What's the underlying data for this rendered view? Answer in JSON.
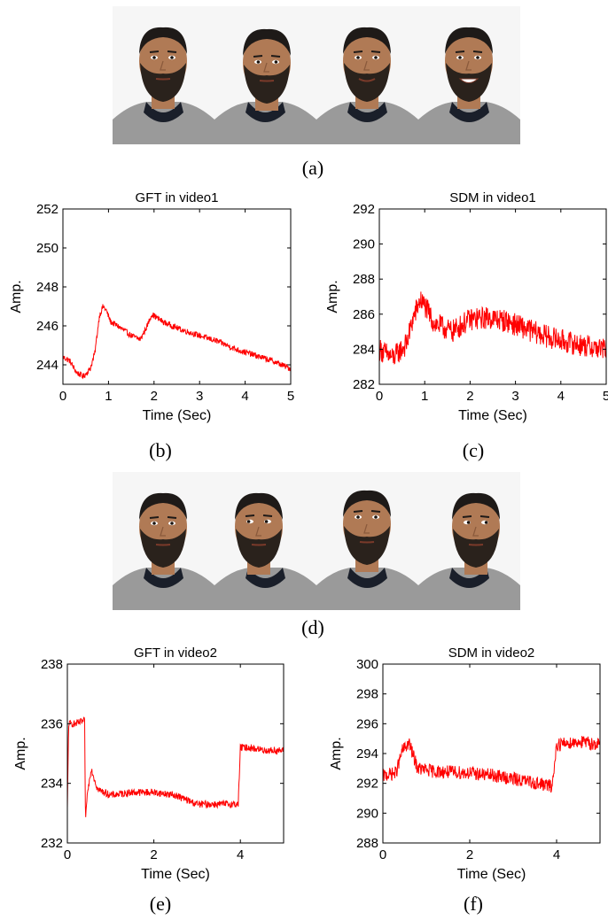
{
  "captions": {
    "a": "(a)",
    "b": "(b)",
    "c": "(c)",
    "d": "(d)",
    "e": "(e)",
    "f": "(f)"
  },
  "photos": {
    "row1": [
      "face-frontal-neutral",
      "face-looking-down",
      "face-slight-smile",
      "face-broad-smile"
    ],
    "row2": [
      "face-frontal",
      "face-turn-left",
      "face-looking-up",
      "face-turn-right"
    ]
  },
  "colors": {
    "signal": "#ff0000",
    "axis": "#000000",
    "skin": "#b07a55",
    "beard": "#2a221c",
    "hoodie": "#9a9a9a",
    "collar": "#1a1f2a"
  },
  "chart_data": [
    {
      "id": "b",
      "type": "line",
      "title": "GFT in video1",
      "xlabel": "Time (Sec)",
      "ylabel": "Amp.",
      "xlim": [
        0,
        5
      ],
      "ylim": [
        243,
        252
      ],
      "xticks": [
        "0",
        "1",
        "2",
        "3",
        "4",
        "5"
      ],
      "yticks": [
        "244",
        "246",
        "248",
        "250",
        "252"
      ],
      "series": [
        {
          "color": "#ff0000",
          "noise": 0.15,
          "points": [
            [
              0,
              244.4
            ],
            [
              0.15,
              244.2
            ],
            [
              0.3,
              243.6
            ],
            [
              0.45,
              243.4
            ],
            [
              0.6,
              243.8
            ],
            [
              0.7,
              244.6
            ],
            [
              0.8,
              246.5
            ],
            [
              0.88,
              247.0
            ],
            [
              0.95,
              246.8
            ],
            [
              1.05,
              246.2
            ],
            [
              1.2,
              246.0
            ],
            [
              1.5,
              245.5
            ],
            [
              1.7,
              245.3
            ],
            [
              1.85,
              246.0
            ],
            [
              1.95,
              246.6
            ],
            [
              2.2,
              246.2
            ],
            [
              2.6,
              245.8
            ],
            [
              3.0,
              245.5
            ],
            [
              3.4,
              245.2
            ],
            [
              3.8,
              244.8
            ],
            [
              4.2,
              244.5
            ],
            [
              4.6,
              244.2
            ],
            [
              5.0,
              243.8
            ]
          ]
        }
      ]
    },
    {
      "id": "c",
      "type": "line",
      "title": "SDM in video1",
      "xlabel": "Time (Sec)",
      "ylabel": "Amp.",
      "xlim": [
        0,
        5
      ],
      "ylim": [
        282,
        292
      ],
      "xticks": [
        "0",
        "1",
        "2",
        "3",
        "4",
        "5"
      ],
      "yticks": [
        "282",
        "284",
        "286",
        "288",
        "290",
        "292"
      ],
      "series": [
        {
          "color": "#ff0000",
          "noise": 0.65,
          "points": [
            [
              0,
              284.0
            ],
            [
              0.3,
              283.5
            ],
            [
              0.6,
              284.3
            ],
            [
              0.75,
              285.8
            ],
            [
              0.9,
              286.8
            ],
            [
              1.0,
              286.5
            ],
            [
              1.2,
              285.5
            ],
            [
              1.6,
              285.0
            ],
            [
              2.0,
              285.7
            ],
            [
              2.4,
              285.8
            ],
            [
              2.8,
              285.6
            ],
            [
              3.2,
              285.2
            ],
            [
              3.6,
              284.8
            ],
            [
              4.0,
              284.5
            ],
            [
              4.5,
              284.2
            ],
            [
              5.0,
              284.0
            ]
          ]
        }
      ]
    },
    {
      "id": "e",
      "type": "line",
      "title": "GFT in video2",
      "xlabel": "Time (Sec)",
      "ylabel": "Amp.",
      "xlim": [
        0,
        5
      ],
      "ylim": [
        232,
        238
      ],
      "xticks": [
        "0",
        "2",
        "4"
      ],
      "yticks": [
        "232",
        "234",
        "236",
        "238"
      ],
      "series": [
        {
          "color": "#ff0000",
          "noise": 0.12,
          "points": [
            [
              0,
              233.1
            ],
            [
              0.03,
              236.0
            ],
            [
              0.2,
              236.0
            ],
            [
              0.4,
              236.1
            ],
            [
              0.42,
              232.6
            ],
            [
              0.45,
              233.5
            ],
            [
              0.55,
              234.5
            ],
            [
              0.7,
              233.8
            ],
            [
              1.0,
              233.6
            ],
            [
              1.5,
              233.7
            ],
            [
              2.0,
              233.7
            ],
            [
              2.5,
              233.6
            ],
            [
              3.0,
              233.3
            ],
            [
              3.5,
              233.3
            ],
            [
              3.95,
              233.3
            ],
            [
              4.0,
              235.2
            ],
            [
              4.2,
              235.2
            ],
            [
              4.6,
              235.1
            ],
            [
              5.0,
              235.1
            ]
          ]
        }
      ]
    },
    {
      "id": "f",
      "type": "line",
      "title": "SDM in video2",
      "xlabel": "Time (Sec)",
      "ylabel": "Amp.",
      "xlim": [
        0,
        5
      ],
      "ylim": [
        288,
        300
      ],
      "xticks": [
        "0",
        "2",
        "4"
      ],
      "yticks": [
        "288",
        "290",
        "292",
        "294",
        "296",
        "298",
        "300"
      ],
      "series": [
        {
          "color": "#ff0000",
          "noise": 0.45,
          "points": [
            [
              0,
              292.5
            ],
            [
              0.3,
              292.7
            ],
            [
              0.45,
              294.2
            ],
            [
              0.6,
              294.7
            ],
            [
              0.8,
              293.0
            ],
            [
              1.2,
              292.8
            ],
            [
              2.0,
              292.7
            ],
            [
              2.6,
              292.5
            ],
            [
              3.2,
              292.2
            ],
            [
              3.9,
              291.8
            ],
            [
              4.0,
              294.6
            ],
            [
              4.5,
              294.8
            ],
            [
              5.0,
              294.6
            ]
          ]
        }
      ]
    }
  ]
}
